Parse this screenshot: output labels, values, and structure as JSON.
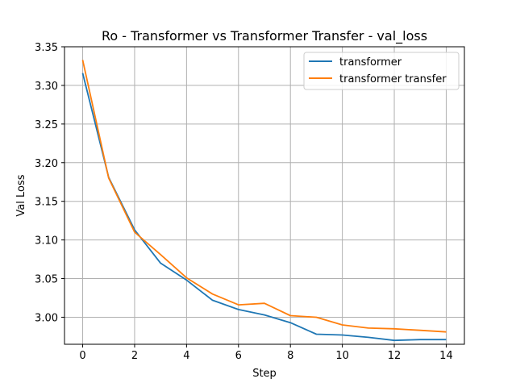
{
  "chart_data": {
    "type": "line",
    "title": "Ro - Transformer vs Transformer Transfer - val_loss",
    "xlabel": "Step",
    "ylabel": "Val Loss",
    "xlim": [
      -0.7,
      14.7
    ],
    "ylim": [
      2.965,
      3.35
    ],
    "xticks": [
      0,
      2,
      4,
      6,
      8,
      10,
      12,
      14
    ],
    "yticks": [
      3.0,
      3.05,
      3.1,
      3.15,
      3.2,
      3.25,
      3.3,
      3.35
    ],
    "grid": true,
    "legend_position": "top-right",
    "x": [
      0,
      1,
      2,
      3,
      4,
      5,
      6,
      7,
      8,
      9,
      10,
      11,
      12,
      13,
      14
    ],
    "series": [
      {
        "name": "transformer",
        "color": "#1f77b4",
        "values": [
          3.316,
          3.181,
          3.113,
          3.07,
          3.048,
          3.022,
          3.01,
          3.003,
          2.993,
          2.978,
          2.977,
          2.974,
          2.97,
          2.971,
          2.971
        ]
      },
      {
        "name": "transformer transfer",
        "color": "#ff7f0e",
        "values": [
          3.333,
          3.18,
          3.11,
          3.081,
          3.051,
          3.03,
          3.016,
          3.018,
          3.002,
          3.0,
          2.99,
          2.986,
          2.985,
          2.983,
          2.981
        ]
      }
    ]
  }
}
